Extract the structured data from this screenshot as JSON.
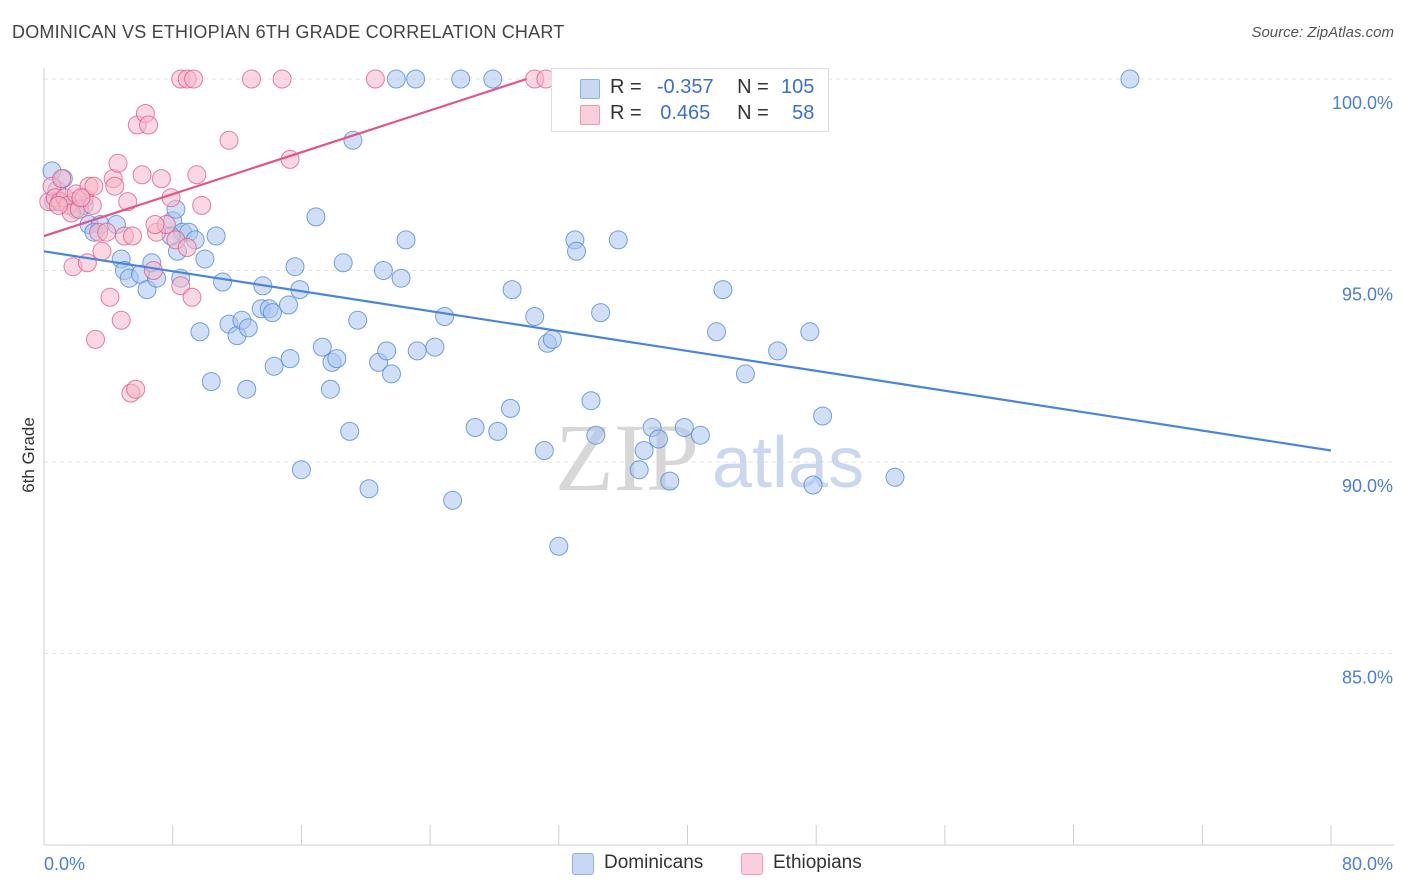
{
  "header": {
    "title": "DOMINICAN VS ETHIOPIAN 6TH GRADE CORRELATION CHART",
    "source": "Source: ZipAtlas.com"
  },
  "watermark": {
    "zip": "ZIP",
    "atlas": "atlas"
  },
  "legend": {
    "rows": [
      {
        "r_label": "R =",
        "r_value": "-0.357",
        "n_label": "N =",
        "n_value": "105",
        "color": "#a9c4ee"
      },
      {
        "r_label": "R =",
        "r_value": "0.465",
        "n_label": "N =",
        "n_value": "58",
        "color": "#f6b6c8"
      }
    ]
  },
  "bottom_legend": [
    {
      "label": "Dominicans",
      "color": "#a9c4ee"
    },
    {
      "label": "Ethiopians",
      "color": "#f6b6c8"
    }
  ],
  "chart_data": {
    "type": "scatter",
    "title": "DOMINICAN VS ETHIOPIAN 6TH GRADE CORRELATION CHART",
    "xlabel": "",
    "ylabel": "6th Grade",
    "xlim": [
      0,
      80
    ],
    "ylim": [
      80.5,
      100.5
    ],
    "x_tick_labels": [
      "0.0%",
      "80.0%"
    ],
    "y_ticks": [
      85,
      90,
      95,
      100
    ],
    "y_tick_labels": [
      "85.0%",
      "90.0%",
      "95.0%",
      "100.0%"
    ],
    "grid": true,
    "legend_position": "top-center",
    "series": [
      {
        "name": "Dominicans",
        "color": "#4a86d8",
        "fill": "#a9c4ee",
        "trend": {
          "x": [
            0,
            80
          ],
          "y": [
            95.5,
            90.3
          ]
        },
        "points": [
          [
            0.5,
            97.6
          ],
          [
            0.8,
            97.1
          ],
          [
            1.2,
            97.4
          ],
          [
            1.8,
            96.8
          ],
          [
            2.5,
            96.7
          ],
          [
            2.8,
            96.2
          ],
          [
            3.5,
            96.2
          ],
          [
            4.5,
            96.2
          ],
          [
            2.0,
            96.6
          ],
          [
            4.8,
            95.3
          ],
          [
            5.0,
            95.0
          ],
          [
            5.3,
            94.8
          ],
          [
            6.0,
            94.9
          ],
          [
            6.4,
            94.5
          ],
          [
            7.0,
            94.8
          ],
          [
            8.0,
            96.3
          ],
          [
            8.6,
            96.0
          ],
          [
            8.3,
            95.5
          ],
          [
            7.9,
            95.9
          ],
          [
            8.5,
            94.8
          ],
          [
            8.2,
            96.6
          ],
          [
            9.0,
            96.0
          ],
          [
            9.4,
            95.8
          ],
          [
            10.0,
            95.3
          ],
          [
            10.7,
            95.9
          ],
          [
            11.1,
            94.7
          ],
          [
            11.5,
            93.6
          ],
          [
            9.7,
            93.4
          ],
          [
            12.0,
            93.3
          ],
          [
            12.3,
            93.7
          ],
          [
            12.7,
            93.5
          ],
          [
            13.5,
            94.0
          ],
          [
            13.6,
            94.6
          ],
          [
            14.0,
            94.0
          ],
          [
            14.2,
            93.9
          ],
          [
            15.2,
            94.1
          ],
          [
            15.6,
            95.1
          ],
          [
            15.9,
            94.5
          ],
          [
            10.4,
            92.1
          ],
          [
            12.6,
            91.9
          ],
          [
            14.3,
            92.5
          ],
          [
            15.3,
            92.7
          ],
          [
            16.0,
            89.8
          ],
          [
            16.9,
            96.4
          ],
          [
            17.3,
            93.0
          ],
          [
            17.8,
            91.9
          ],
          [
            17.9,
            92.6
          ],
          [
            18.2,
            92.7
          ],
          [
            18.6,
            95.2
          ],
          [
            19.0,
            90.8
          ],
          [
            19.2,
            98.4
          ],
          [
            19.5,
            93.7
          ],
          [
            20.2,
            89.3
          ],
          [
            20.8,
            92.6
          ],
          [
            21.1,
            95.0
          ],
          [
            21.3,
            92.9
          ],
          [
            21.6,
            92.3
          ],
          [
            22.2,
            94.8
          ],
          [
            22.5,
            95.8
          ],
          [
            23.2,
            92.9
          ],
          [
            24.3,
            93.0
          ],
          [
            24.9,
            93.8
          ],
          [
            25.4,
            89.0
          ],
          [
            26.8,
            90.9
          ],
          [
            28.2,
            90.8
          ],
          [
            29.0,
            91.4
          ],
          [
            29.1,
            94.5
          ],
          [
            30.5,
            93.8
          ],
          [
            31.1,
            90.3
          ],
          [
            31.3,
            93.1
          ],
          [
            31.6,
            93.2
          ],
          [
            32.0,
            87.8
          ],
          [
            33.0,
            95.8
          ],
          [
            33.1,
            95.5
          ],
          [
            34.0,
            91.6
          ],
          [
            34.3,
            90.7
          ],
          [
            34.6,
            93.9
          ],
          [
            35.7,
            95.8
          ],
          [
            35.8,
            100.0
          ],
          [
            37.0,
            89.8
          ],
          [
            37.3,
            90.3
          ],
          [
            37.8,
            90.9
          ],
          [
            38.2,
            90.6
          ],
          [
            38.9,
            89.5
          ],
          [
            39.8,
            90.9
          ],
          [
            40.8,
            90.7
          ],
          [
            41.8,
            93.4
          ],
          [
            42.2,
            94.5
          ],
          [
            43.6,
            92.3
          ],
          [
            45.6,
            92.9
          ],
          [
            47.6,
            93.4
          ],
          [
            47.8,
            89.4
          ],
          [
            48.4,
            91.2
          ],
          [
            52.9,
            89.6
          ],
          [
            67.5,
            100.0
          ],
          [
            21.9,
            100.0
          ],
          [
            23.1,
            100.0
          ],
          [
            25.9,
            100.0
          ],
          [
            27.9,
            100.0
          ],
          [
            32.2,
            100.0
          ],
          [
            42.3,
            100.0
          ],
          [
            40.0,
            100.0
          ],
          [
            0.6,
            96.8
          ],
          [
            3.1,
            96.0
          ],
          [
            6.7,
            95.2
          ]
        ]
      },
      {
        "name": "Ethiopians",
        "color": "#e0558a",
        "fill": "#f6b6c8",
        "trend": {
          "x": [
            0,
            30
          ],
          "y": [
            95.9,
            100.0
          ]
        },
        "points": [
          [
            0.3,
            96.8
          ],
          [
            0.5,
            97.2
          ],
          [
            0.7,
            96.9
          ],
          [
            1.0,
            96.8
          ],
          [
            1.3,
            96.9
          ],
          [
            1.5,
            96.7
          ],
          [
            1.7,
            96.5
          ],
          [
            2.0,
            97.0
          ],
          [
            2.2,
            96.6
          ],
          [
            2.5,
            96.9
          ],
          [
            2.8,
            97.2
          ],
          [
            3.1,
            97.2
          ],
          [
            3.4,
            96.0
          ],
          [
            3.6,
            95.5
          ],
          [
            3.9,
            96.0
          ],
          [
            4.3,
            97.4
          ],
          [
            4.6,
            97.8
          ],
          [
            5.0,
            95.9
          ],
          [
            5.2,
            96.8
          ],
          [
            5.5,
            95.9
          ],
          [
            5.8,
            98.8
          ],
          [
            6.1,
            97.5
          ],
          [
            6.3,
            99.1
          ],
          [
            6.5,
            98.8
          ],
          [
            6.8,
            95.0
          ],
          [
            7.0,
            96.0
          ],
          [
            7.3,
            97.4
          ],
          [
            7.6,
            96.2
          ],
          [
            7.9,
            96.9
          ],
          [
            8.2,
            95.8
          ],
          [
            8.5,
            94.6
          ],
          [
            8.9,
            95.6
          ],
          [
            9.2,
            94.3
          ],
          [
            9.5,
            97.5
          ],
          [
            9.8,
            96.7
          ],
          [
            1.8,
            95.1
          ],
          [
            2.7,
            95.2
          ],
          [
            3.2,
            93.2
          ],
          [
            4.1,
            94.3
          ],
          [
            4.8,
            93.7
          ],
          [
            5.4,
            91.8
          ],
          [
            5.7,
            91.9
          ],
          [
            8.5,
            100.0
          ],
          [
            8.9,
            100.0
          ],
          [
            9.3,
            100.0
          ],
          [
            11.5,
            98.4
          ],
          [
            12.9,
            100.0
          ],
          [
            14.8,
            100.0
          ],
          [
            15.3,
            97.9
          ],
          [
            20.6,
            100.0
          ],
          [
            30.5,
            100.0
          ],
          [
            31.2,
            100.0
          ],
          [
            3.0,
            96.7
          ],
          [
            2.3,
            96.9
          ],
          [
            1.1,
            97.4
          ],
          [
            6.9,
            96.2
          ],
          [
            4.4,
            97.2
          ],
          [
            0.9,
            96.7
          ]
        ]
      }
    ]
  }
}
